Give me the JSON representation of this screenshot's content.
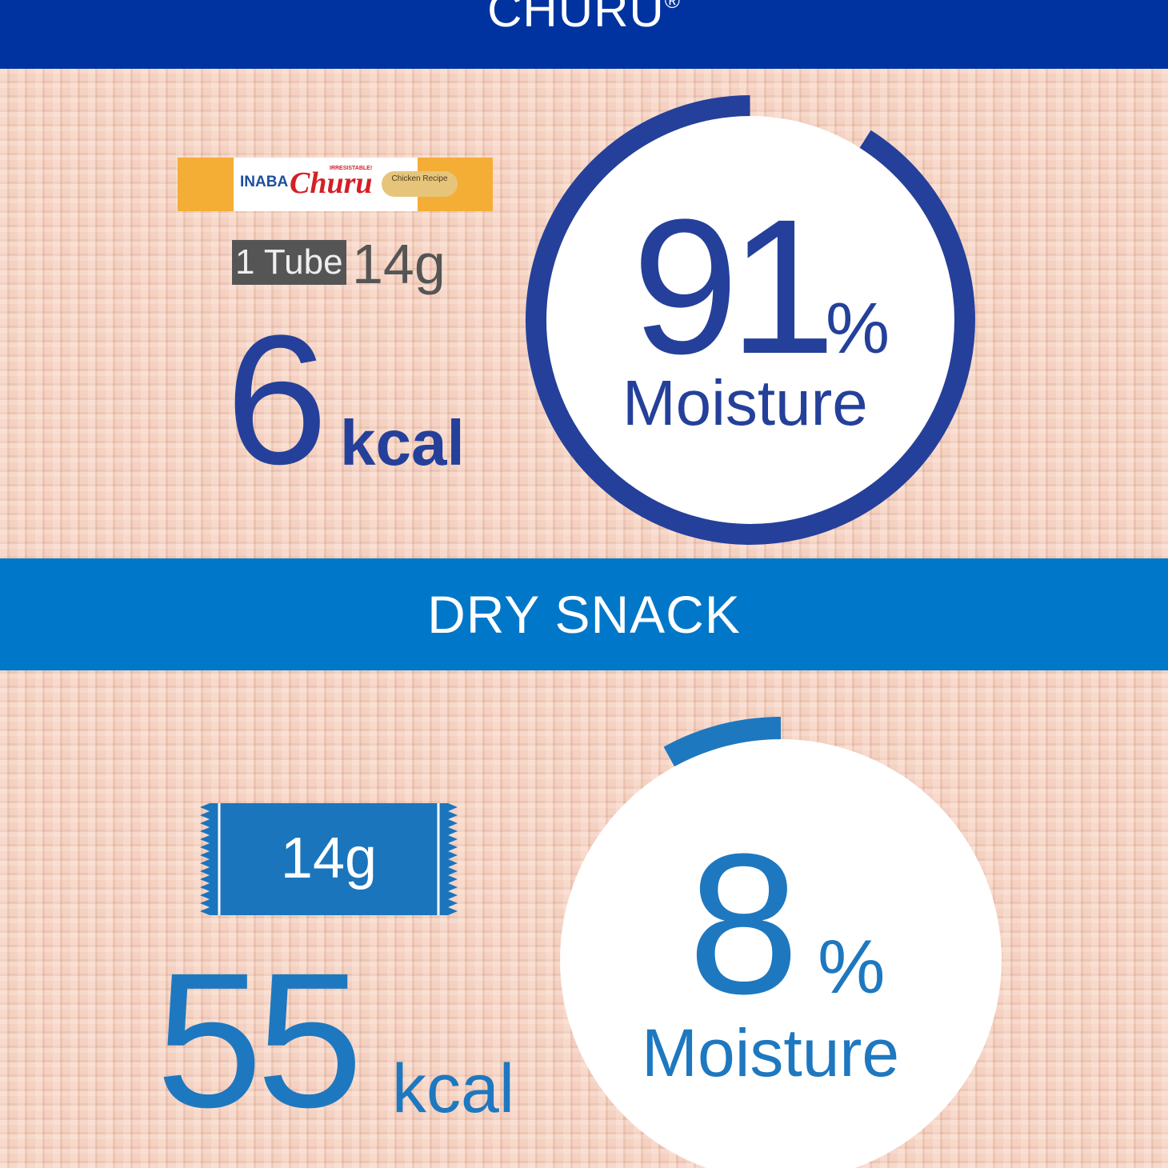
{
  "header": {
    "brand": "CHURU",
    "registered": "®"
  },
  "churu": {
    "package": {
      "maker": "INABA",
      "name": "Churu",
      "tagline": "IRRESISTABLE!",
      "flavor": "Chicken Recipe"
    },
    "serving_label": "1 Tube",
    "serving_weight": "14g",
    "kcal_value": "6",
    "kcal_unit": "kcal",
    "moisture_value": "91",
    "moisture_percent": 91,
    "percent_sign": "%",
    "moisture_label": "Moisture",
    "color": "#24409a"
  },
  "section2": {
    "title": "DRY SNACK"
  },
  "dry_snack": {
    "serving_weight": "14g",
    "kcal_value": "55",
    "kcal_unit": "kcal",
    "moisture_value": "8",
    "moisture_percent": 8,
    "percent_sign": "%",
    "moisture_label": "Moisture",
    "color": "#1e78c0"
  },
  "colors": {
    "header": "#0033a0",
    "band": "#0077c8",
    "background": "#efc8b6"
  }
}
